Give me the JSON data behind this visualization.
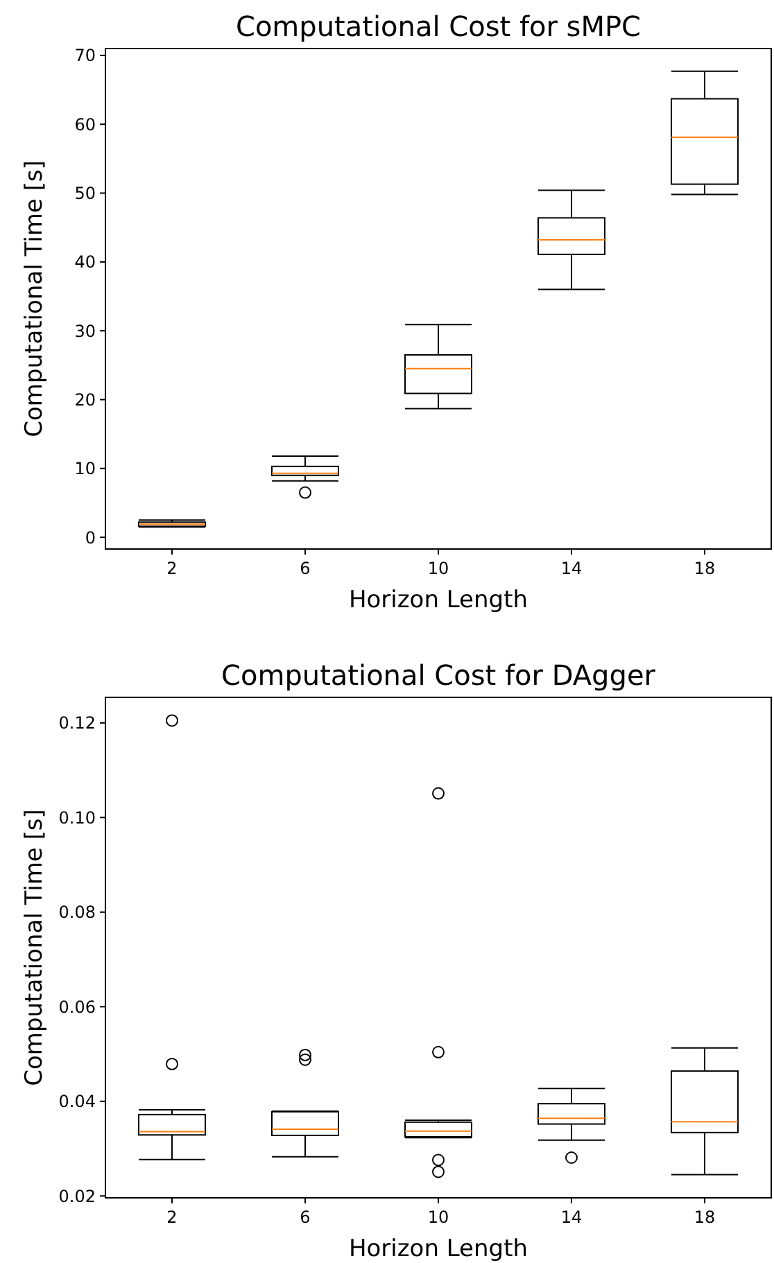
{
  "chart_data": [
    {
      "type": "box",
      "title": "Computational Cost for sMPC",
      "xlabel": "Horizon Length",
      "ylabel": "Computational Time [s]",
      "categories": [
        "2",
        "6",
        "10",
        "14",
        "18"
      ],
      "boxes": [
        {
          "low": 1.5,
          "q1": 1.6,
          "median": 1.9,
          "q3": 2.2,
          "high": 2.5
        },
        {
          "low": 8.2,
          "q1": 9.0,
          "median": 9.3,
          "q3": 10.3,
          "high": 11.8,
          "outliers": [
            6.5
          ]
        },
        {
          "low": 18.7,
          "q1": 20.9,
          "median": 24.5,
          "q3": 26.5,
          "high": 30.9
        },
        {
          "low": 36.0,
          "q1": 41.1,
          "median": 43.2,
          "q3": 46.4,
          "high": 50.4
        },
        {
          "low": 49.8,
          "q1": 51.3,
          "median": 58.1,
          "q3": 63.7,
          "high": 67.7
        }
      ],
      "ylim": [
        -1.7,
        71
      ],
      "yticks": [
        0,
        10,
        20,
        30,
        40,
        50,
        60,
        70
      ]
    },
    {
      "type": "box",
      "title": "Computational Cost for DAgger",
      "xlabel": "Horizon Length",
      "ylabel": "Computational Time  [s]",
      "categories": [
        "2",
        "6",
        "10",
        "14",
        "18"
      ],
      "boxes": [
        {
          "low": 0.0277,
          "q1": 0.0329,
          "median": 0.0336,
          "q3": 0.0372,
          "high": 0.0382,
          "outliers": [
            0.1205,
            0.0479
          ]
        },
        {
          "low": 0.0283,
          "q1": 0.0328,
          "median": 0.0341,
          "q3": 0.0378,
          "high": 0.0379,
          "outliers": [
            0.0498,
            0.0488
          ]
        },
        {
          "low": 0.0323,
          "q1": 0.0325,
          "median": 0.0337,
          "q3": 0.0356,
          "high": 0.036,
          "outliers": [
            0.1051,
            0.0504,
            0.0276,
            0.0251
          ]
        },
        {
          "low": 0.0318,
          "q1": 0.0352,
          "median": 0.0364,
          "q3": 0.0395,
          "high": 0.0427,
          "outliers": [
            0.0281
          ]
        },
        {
          "low": 0.0245,
          "q1": 0.0334,
          "median": 0.0357,
          "q3": 0.0464,
          "high": 0.0513
        }
      ],
      "ylim": [
        0.0196,
        0.1254
      ],
      "yticks": [
        0.02,
        0.04,
        0.06,
        0.08,
        {
          "value": 0.1,
          "label": "0.10"
        },
        0.12
      ]
    }
  ]
}
